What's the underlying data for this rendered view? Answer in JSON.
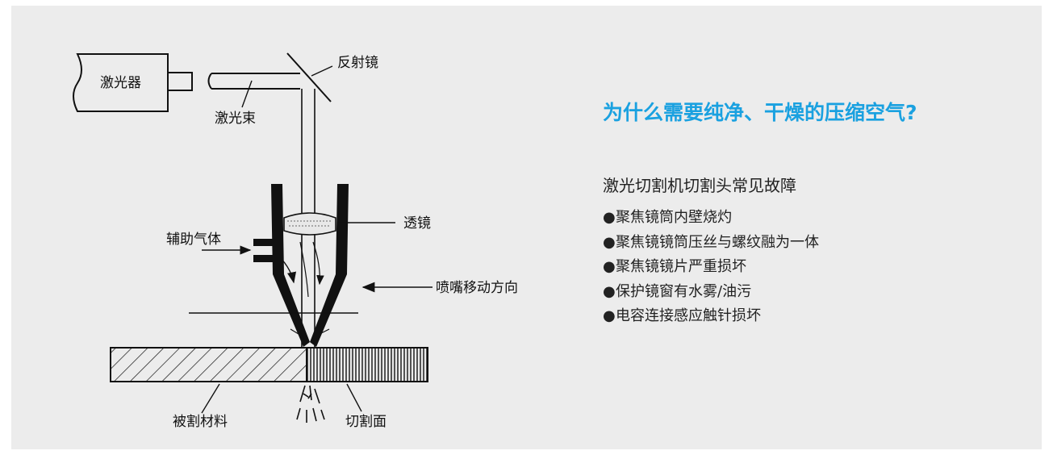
{
  "diagram": {
    "labels": {
      "laser": "激光器",
      "beam": "激光束",
      "mirror": "反射镜",
      "lens": "透镜",
      "assist_gas": "辅助气体",
      "nozzle_direction": "喷嘴移动方向",
      "material": "被割材料",
      "cut_surface": "切割面"
    }
  },
  "content": {
    "title": "为什么需要纯净、干燥的压缩空气?",
    "subtitle": "激光切割机切割头常见故障",
    "bullet_symbol": "●",
    "items": [
      "聚焦镜筒内壁烧灼",
      "聚焦镜镜筒压丝与螺纹融为一体",
      "聚焦镜镜片严重损坏",
      "保护镜窗有水雾/油污",
      "电容连接感应触针损坏"
    ]
  },
  "colors": {
    "background": "#ececec",
    "title": "#1aa1e0",
    "text": "#222222"
  }
}
